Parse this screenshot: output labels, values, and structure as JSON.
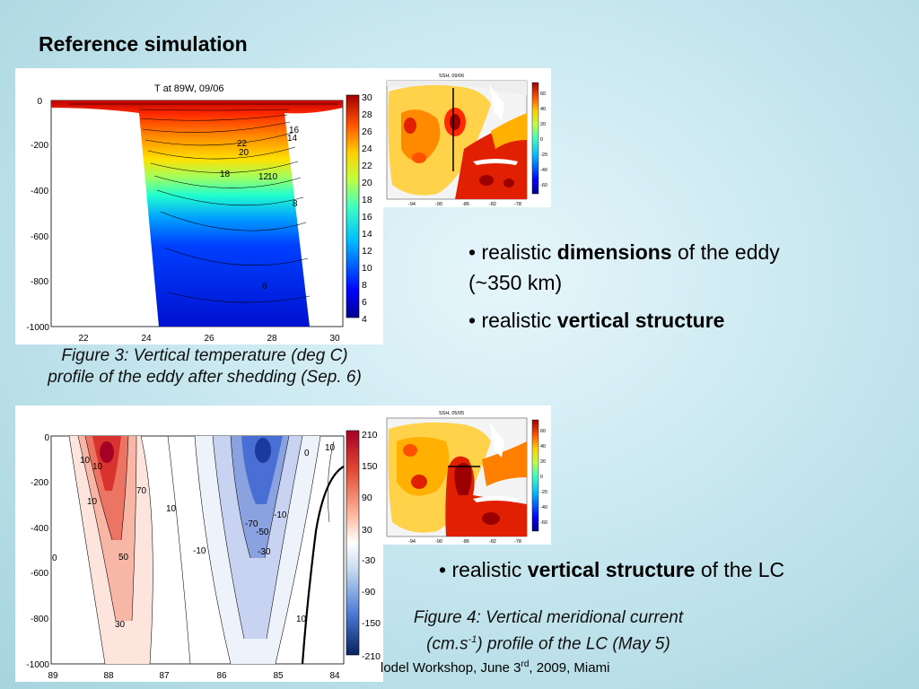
{
  "slide": {
    "title": "Reference simulation",
    "footer": {
      "text": "lodel Workshop, June 3",
      "sup": "rd",
      "suffix": ", 2009, Miami"
    }
  },
  "figure3": {
    "plot_title": "T at 89W, 09/06",
    "y_ticks": [
      "0",
      "-200",
      "-400",
      "-600",
      "-800",
      "-1000"
    ],
    "x_ticks": [
      "22",
      "24",
      "26",
      "28",
      "30"
    ],
    "colorbar_ticks": [
      "30",
      "28",
      "26",
      "24",
      "22",
      "20",
      "18",
      "16",
      "14",
      "12",
      "10",
      "8",
      "6",
      "4"
    ],
    "contour_labels": [
      "16",
      "14",
      "22",
      "20",
      "18",
      "12",
      "10",
      "8",
      "6"
    ],
    "caption_line1": "Figure 3: Vertical temperature (deg C)",
    "caption_line2": "profile of the eddy after shedding (Sep. 6)"
  },
  "figure4": {
    "y_ticks": [
      "0",
      "-200",
      "-400",
      "-600",
      "-800",
      "-1000"
    ],
    "x_ticks": [
      "89",
      "88",
      "87",
      "86",
      "85",
      "84"
    ],
    "colorbar_ticks": [
      "210",
      "150",
      "90",
      "30",
      "-30",
      "-90",
      "-150",
      "-210"
    ],
    "contour_labels": [
      "10",
      "10",
      "70",
      "10",
      "10",
      "-70",
      "-50",
      "-10",
      "-30",
      "-10",
      "50",
      "30",
      "10",
      "0",
      "10",
      "0"
    ],
    "caption_line1": "Figure 4: Vertical meridional current",
    "caption_line2_pre": "(cm.s",
    "caption_line2_sup": "-1",
    "caption_line2_post": ") profile of the LC (May 5)"
  },
  "map_top": {
    "title": "SSH, 09/06",
    "x_ticks": [
      "-94",
      "-90",
      "-86",
      "-82",
      "-78"
    ],
    "colorbar_ticks": [
      "60",
      "40",
      "20",
      "0",
      "-20",
      "-40",
      "-60"
    ]
  },
  "map_bottom": {
    "title": "SSH, 05/05",
    "x_ticks": [
      "-94",
      "-90",
      "-86",
      "-82",
      "-78"
    ],
    "colorbar_ticks": [
      "60",
      "40",
      "20",
      "0",
      "-20",
      "-40",
      "-60"
    ]
  },
  "bullets_top": [
    {
      "pre": "• realistic ",
      "bold": "dimensions",
      "post": " of the eddy (~350 km)"
    },
    {
      "pre": "• realistic ",
      "bold": "vertical structure",
      "post": ""
    }
  ],
  "bullets_bottom": [
    {
      "pre": "• realistic ",
      "bold": "vertical structure",
      "post": " of the LC"
    }
  ],
  "colors": {
    "jet": [
      "#00008f",
      "#0000ff",
      "#0080ff",
      "#00ffff",
      "#80ff80",
      "#ffff00",
      "#ff8000",
      "#ff0000",
      "#800000"
    ],
    "diverging": [
      "#b2182b",
      "#ef8a62",
      "#fddbc7",
      "#ffffff",
      "#d1e5f0",
      "#67a9cf",
      "#2166ac"
    ]
  }
}
